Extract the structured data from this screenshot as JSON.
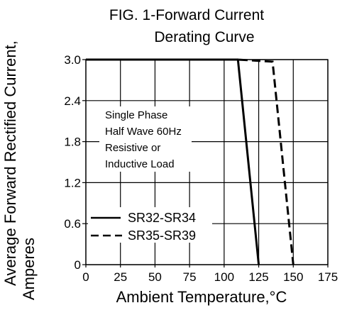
{
  "chart_data": {
    "type": "line",
    "title_lines": [
      "FIG. 1-Forward Current",
      "Derating Curve"
    ],
    "ylabel_lines": [
      "Average Forward Rectified Current,",
      "Amperes"
    ],
    "xlabel": "Ambient Temperature,°C",
    "xlim": [
      0,
      175
    ],
    "ylim": [
      0,
      3.0
    ],
    "x_ticks": [
      0,
      25,
      50,
      75,
      100,
      125,
      150,
      175
    ],
    "x_tick_labels": [
      "0",
      "25",
      "50",
      "75",
      "100",
      "125",
      "150",
      "175"
    ],
    "y_ticks": [
      0,
      0.6,
      1.2,
      1.8,
      2.4,
      3.0
    ],
    "y_tick_labels": [
      "0",
      "0.6",
      "1.2",
      "1.8",
      "2.4",
      "3.0"
    ],
    "grid": true,
    "annotation_lines": [
      "Single Phase",
      "Half Wave 60Hz",
      "Resistive or",
      "Inductive Load"
    ],
    "series": [
      {
        "name": "SR32-SR34",
        "style": "solid",
        "color": "#000000",
        "x": [
          0,
          110,
          125
        ],
        "y": [
          3.0,
          3.0,
          0
        ]
      },
      {
        "name": "SR35-SR39",
        "style": "dashed",
        "color": "#000000",
        "x": [
          0,
          110,
          135,
          150
        ],
        "y": [
          3.0,
          3.0,
          2.97,
          0
        ]
      }
    ],
    "legend_position": "lower-left"
  }
}
